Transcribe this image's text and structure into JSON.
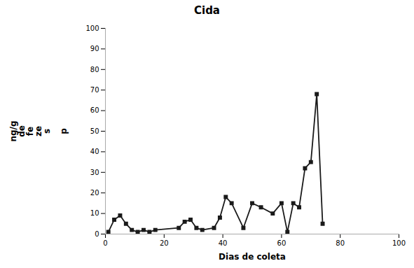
{
  "chart_data": {
    "type": "line",
    "title": "Cida",
    "xlabel": "Dias de coleta",
    "ylabel": "ng/g\nde\nfe\nze\ns\n\np",
    "x": [
      1,
      3,
      5,
      7,
      9,
      11,
      13,
      15,
      17,
      25,
      27,
      29,
      31,
      33,
      37,
      39,
      41,
      43,
      47,
      50,
      53,
      57,
      60,
      62,
      64,
      66,
      68,
      70,
      72,
      74
    ],
    "values": [
      1,
      7,
      9,
      5,
      2,
      1,
      2,
      1,
      2,
      3,
      6,
      7,
      3,
      2,
      3,
      8,
      18,
      15,
      3,
      15,
      13,
      10,
      15,
      1,
      15,
      13,
      32,
      35,
      68,
      5
    ],
    "color": "#1a1a1a",
    "marker": "square",
    "xlim": [
      0,
      100
    ],
    "ylim": [
      0,
      100
    ],
    "xticks": [
      0,
      20,
      40,
      60,
      80,
      100
    ],
    "yticks": [
      0,
      10,
      20,
      30,
      40,
      50,
      60,
      70,
      80,
      90,
      100
    ],
    "grid": false
  }
}
